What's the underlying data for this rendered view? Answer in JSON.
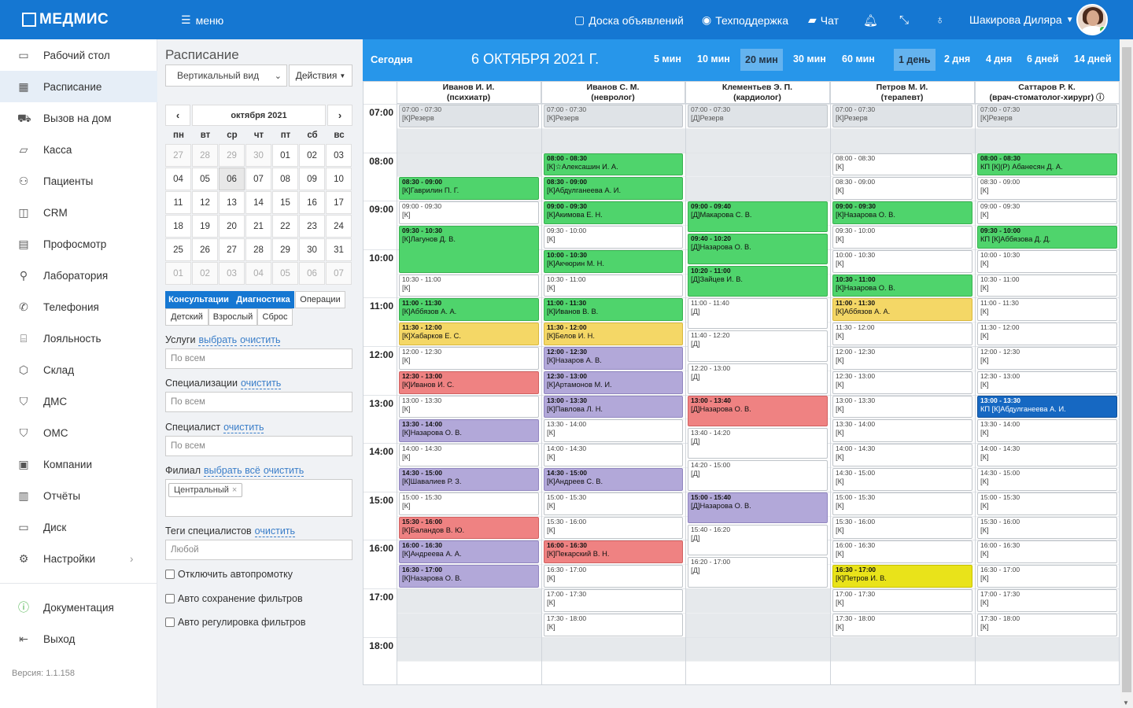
{
  "app": {
    "logo": "МЕДМИС",
    "menu_label": "меню",
    "nav": [
      {
        "label": "Доска объявлений",
        "icon": "clipboard-icon"
      },
      {
        "label": "Техподдержка",
        "icon": "lifebuoy-icon"
      },
      {
        "label": "Чат",
        "icon": "chat-icon"
      }
    ],
    "user_name": "Шакирова Диляра"
  },
  "sidebar": {
    "items": [
      {
        "label": "Рабочий стол",
        "icon": "desktop-icon"
      },
      {
        "label": "Расписание",
        "icon": "calendar-icon"
      },
      {
        "label": "Вызов на дом",
        "icon": "truck-icon"
      },
      {
        "label": "Касса",
        "icon": "money-icon"
      },
      {
        "label": "Пациенты",
        "icon": "users-icon"
      },
      {
        "label": "CRM",
        "icon": "crm-icon"
      },
      {
        "label": "Профосмотр",
        "icon": "book-icon"
      },
      {
        "label": "Лаборатория",
        "icon": "microscope-icon"
      },
      {
        "label": "Телефония",
        "icon": "phone-icon"
      },
      {
        "label": "Лояльность",
        "icon": "gift-icon"
      },
      {
        "label": "Склад",
        "icon": "box-icon"
      },
      {
        "label": "ДМС",
        "icon": "shield-icon"
      },
      {
        "label": "ОМС",
        "icon": "shield-icon"
      },
      {
        "label": "Компании",
        "icon": "briefcase-icon"
      },
      {
        "label": "Отчёты",
        "icon": "bar-chart-icon"
      },
      {
        "label": "Диск",
        "icon": "folder-icon"
      },
      {
        "label": "Настройки",
        "icon": "gear-icon"
      }
    ],
    "bottom": [
      {
        "label": "Документация",
        "icon": "help-icon"
      },
      {
        "label": "Выход",
        "icon": "logout-icon"
      }
    ],
    "version": "Версия: 1.1.158"
  },
  "filters": {
    "title": "Расписание",
    "view_select": "Вертикальный вид",
    "actions_button": "Действия",
    "calendar": {
      "month": "октября 2021",
      "weekdays": [
        "пн",
        "вт",
        "ср",
        "чт",
        "пт",
        "сб",
        "вс"
      ],
      "days": [
        [
          "27",
          "28",
          "29",
          "30",
          "01",
          "02",
          "03"
        ],
        [
          "04",
          "05",
          "06",
          "07",
          "08",
          "09",
          "10"
        ],
        [
          "11",
          "12",
          "13",
          "14",
          "15",
          "16",
          "17"
        ],
        [
          "18",
          "19",
          "20",
          "21",
          "22",
          "23",
          "24"
        ],
        [
          "25",
          "26",
          "27",
          "28",
          "29",
          "30",
          "31"
        ],
        [
          "01",
          "02",
          "03",
          "04",
          "05",
          "06",
          "07"
        ]
      ]
    },
    "tabs": [
      "Консультации",
      "Диагностика",
      "Операции"
    ],
    "subtabs": [
      "Детский",
      "Взрослый",
      "Сброс"
    ],
    "services_label": "Услуги",
    "select_link": "выбрать",
    "clear_link": "очистить",
    "select_all_link": "выбрать всё",
    "all_placeholder": "По всем",
    "spec_label": "Специализации",
    "specialist_label": "Специалист",
    "branch_label": "Филиал",
    "branch_tag": "Центральный",
    "tags_label": "Теги специалистов",
    "tags_placeholder": "Любой",
    "checkboxes": [
      "Отключить автопромотку",
      "Авто сохранение фильтров",
      "Авто регулировка фильтров"
    ]
  },
  "schedule": {
    "today": "Сегодня",
    "date": "6 ОКТЯБРЯ 2021 Г.",
    "scales": [
      "5 мин",
      "10 мин",
      "20 мин",
      "30 мин",
      "60 мин",
      "1 день",
      "2 дня",
      "4 дня",
      "6 дней",
      "14 дней"
    ],
    "hours": [
      "07:00",
      "08:00",
      "09:00",
      "10:00",
      "11:00",
      "12:00",
      "13:00",
      "14:00",
      "15:00",
      "16:00",
      "17:00",
      "18:00"
    ],
    "doctors": [
      {
        "name": "Иванов И. И.",
        "spec": "(психиатр)"
      },
      {
        "name": "Иванов С. М.",
        "spec": "(невролог)"
      },
      {
        "name": "Клементьев Э. П.",
        "spec": "(кардиолог)"
      },
      {
        "name": "Петров М. И.",
        "spec": "(терапевт)"
      },
      {
        "name": "Саттаров Р. К.",
        "spec": "(врач-стоматолог-хирург) ⓘ"
      }
    ],
    "slots": [
      [
        {
          "s": "07:00",
          "e": "07:30",
          "t": "07:00 - 07:30",
          "p": "[К]Резерв",
          "c": "e"
        },
        {
          "s": "08:30",
          "e": "09:00",
          "t": "08:30 - 09:00",
          "p": "[К]Гаврилин П. Г.",
          "c": "g"
        },
        {
          "s": "09:00",
          "e": "09:30",
          "t": "09:00 - 09:30",
          "p": "[К]",
          "c": "w"
        },
        {
          "s": "09:30",
          "e": "10:30",
          "t": "09:30 - 10:30",
          "p": "[К]Лагунов Д. В.",
          "c": "g"
        },
        {
          "s": "10:30",
          "e": "11:00",
          "t": "10:30 - 11:00",
          "p": "[К]",
          "c": "w"
        },
        {
          "s": "11:00",
          "e": "11:30",
          "t": "11:00 - 11:30",
          "p": "[К]Аббязов А. А.",
          "c": "g"
        },
        {
          "s": "11:30",
          "e": "12:00",
          "t": "11:30 - 12:00",
          "p": "[К]Хабарков Е. С.",
          "c": "y"
        },
        {
          "s": "12:00",
          "e": "12:30",
          "t": "12:00 - 12:30",
          "p": "[К]",
          "c": "w"
        },
        {
          "s": "12:30",
          "e": "13:00",
          "t": "12:30 - 13:00",
          "p": "[К]Иванов И. С.",
          "c": "r"
        },
        {
          "s": "13:00",
          "e": "13:30",
          "t": "13:00 - 13:30",
          "p": "[К]",
          "c": "w"
        },
        {
          "s": "13:30",
          "e": "14:00",
          "t": "13:30 - 14:00",
          "p": "[К]Назарова О. В.",
          "c": "v"
        },
        {
          "s": "14:00",
          "e": "14:30",
          "t": "14:00 - 14:30",
          "p": "[К]",
          "c": "w"
        },
        {
          "s": "14:30",
          "e": "15:00",
          "t": "14:30 - 15:00",
          "p": "[К]Шавалиев Р. З.",
          "c": "v"
        },
        {
          "s": "15:00",
          "e": "15:30",
          "t": "15:00 - 15:30",
          "p": "[К]",
          "c": "w"
        },
        {
          "s": "15:30",
          "e": "16:00",
          "t": "15:30 - 16:00",
          "p": "[К]Баландов В. Ю.",
          "c": "r"
        },
        {
          "s": "16:00",
          "e": "16:30",
          "t": "16:00 - 16:30",
          "p": "[К]Андреева А. А.",
          "c": "v"
        },
        {
          "s": "16:30",
          "e": "17:00",
          "t": "16:30 - 17:00",
          "p": "[К]Назарова О. В.",
          "c": "v"
        }
      ],
      [
        {
          "s": "07:00",
          "e": "07:30",
          "t": "07:00 - 07:30",
          "p": "[К]Резерв",
          "c": "e"
        },
        {
          "s": "08:00",
          "e": "08:30",
          "t": "08:00 - 08:30",
          "p": "[К]☆Алексашин И. А.",
          "c": "g"
        },
        {
          "s": "08:30",
          "e": "09:00",
          "t": "08:30 - 09:00",
          "p": "[К]Абдулганеева А. И.",
          "c": "g"
        },
        {
          "s": "09:00",
          "e": "09:30",
          "t": "09:00 - 09:30",
          "p": "[К]Акимова Е. Н.",
          "c": "g"
        },
        {
          "s": "09:30",
          "e": "10:00",
          "t": "09:30 - 10:00",
          "p": "[К]",
          "c": "w"
        },
        {
          "s": "10:00",
          "e": "10:30",
          "t": "10:00 - 10:30",
          "p": "[К]Акчюрин М. Н.",
          "c": "g"
        },
        {
          "s": "10:30",
          "e": "11:00",
          "t": "10:30 - 11:00",
          "p": "[К]",
          "c": "w"
        },
        {
          "s": "11:00",
          "e": "11:30",
          "t": "11:00 - 11:30",
          "p": "[К]Иванов В. В.",
          "c": "g"
        },
        {
          "s": "11:30",
          "e": "12:00",
          "t": "11:30 - 12:00",
          "p": "[К]Белов И. Н.",
          "c": "y"
        },
        {
          "s": "12:00",
          "e": "12:30",
          "t": "12:00 - 12:30",
          "p": "[К]Назаров А. В.",
          "c": "v"
        },
        {
          "s": "12:30",
          "e": "13:00",
          "t": "12:30 - 13:00",
          "p": "[К]Артамонов М. И.",
          "c": "v"
        },
        {
          "s": "13:00",
          "e": "13:30",
          "t": "13:00 - 13:30",
          "p": "[К]Павлова Л. Н.",
          "c": "v"
        },
        {
          "s": "13:30",
          "e": "14:00",
          "t": "13:30 - 14:00",
          "p": "[К]",
          "c": "w"
        },
        {
          "s": "14:00",
          "e": "14:30",
          "t": "14:00 - 14:30",
          "p": "[К]",
          "c": "w"
        },
        {
          "s": "14:30",
          "e": "15:00",
          "t": "14:30 - 15:00",
          "p": "[К]Андреев С. В.",
          "c": "v"
        },
        {
          "s": "15:00",
          "e": "15:30",
          "t": "15:00 - 15:30",
          "p": "[К]",
          "c": "w"
        },
        {
          "s": "15:30",
          "e": "16:00",
          "t": "15:30 - 16:00",
          "p": "[К]",
          "c": "w"
        },
        {
          "s": "16:00",
          "e": "16:30",
          "t": "16:00 - 16:30",
          "p": "[К]Пекарский В. Н.",
          "c": "r"
        },
        {
          "s": "16:30",
          "e": "17:00",
          "t": "16:30 - 17:00",
          "p": "[К]",
          "c": "w"
        },
        {
          "s": "17:00",
          "e": "17:30",
          "t": "17:00 - 17:30",
          "p": "[К]",
          "c": "w"
        },
        {
          "s": "17:30",
          "e": "18:00",
          "t": "17:30 - 18:00",
          "p": "[К]",
          "c": "w"
        }
      ],
      [
        {
          "s": "07:00",
          "e": "07:30",
          "t": "07:00 - 07:30",
          "p": "[Д]Резерв",
          "c": "e"
        },
        {
          "s": "09:00",
          "e": "09:40",
          "t": "09:00 - 09:40",
          "p": "[Д]Макарова С. В.",
          "c": "g"
        },
        {
          "s": "09:40",
          "e": "10:20",
          "t": "09:40 - 10:20",
          "p": "[Д]Назарова О. В.",
          "c": "g"
        },
        {
          "s": "10:20",
          "e": "11:00",
          "t": "10:20 - 11:00",
          "p": "[Д]Зайцев И. В.",
          "c": "g"
        },
        {
          "s": "11:00",
          "e": "11:40",
          "t": "11:00 - 11:40",
          "p": "[Д]",
          "c": "w"
        },
        {
          "s": "11:40",
          "e": "12:20",
          "t": "11:40 - 12:20",
          "p": "[Д]",
          "c": "w"
        },
        {
          "s": "12:20",
          "e": "13:00",
          "t": "12:20 - 13:00",
          "p": "[Д]",
          "c": "w"
        },
        {
          "s": "13:00",
          "e": "13:40",
          "t": "13:00 - 13:40",
          "p": "[Д]Назарова О. В.",
          "c": "r"
        },
        {
          "s": "13:40",
          "e": "14:20",
          "t": "13:40 - 14:20",
          "p": "[Д]",
          "c": "w"
        },
        {
          "s": "14:20",
          "e": "15:00",
          "t": "14:20 - 15:00",
          "p": "[Д]",
          "c": "w"
        },
        {
          "s": "15:00",
          "e": "15:40",
          "t": "15:00 - 15:40",
          "p": "[Д]Назарова О. В.",
          "c": "v"
        },
        {
          "s": "15:40",
          "e": "16:20",
          "t": "15:40 - 16:20",
          "p": "[Д]",
          "c": "w"
        },
        {
          "s": "16:20",
          "e": "17:00",
          "t": "16:20 - 17:00",
          "p": "[Д]",
          "c": "w"
        }
      ],
      [
        {
          "s": "07:00",
          "e": "07:30",
          "t": "07:00 - 07:30",
          "p": "[К]Резерв",
          "c": "e"
        },
        {
          "s": "08:00",
          "e": "08:30",
          "t": "08:00 - 08:30",
          "p": "[К]",
          "c": "w"
        },
        {
          "s": "08:30",
          "e": "09:00",
          "t": "08:30 - 09:00",
          "p": "[К]",
          "c": "w"
        },
        {
          "s": "09:00",
          "e": "09:30",
          "t": "09:00 - 09:30",
          "p": "[К]Назарова О. В.",
          "c": "g"
        },
        {
          "s": "09:30",
          "e": "10:00",
          "t": "09:30 - 10:00",
          "p": "[К]",
          "c": "w"
        },
        {
          "s": "10:00",
          "e": "10:30",
          "t": "10:00 - 10:30",
          "p": "[К]",
          "c": "w"
        },
        {
          "s": "10:30",
          "e": "11:00",
          "t": "10:30 - 11:00",
          "p": "[К]Назарова О. В.",
          "c": "g"
        },
        {
          "s": "11:00",
          "e": "11:30",
          "t": "11:00 - 11:30",
          "p": "[К]Аббязов А. А.",
          "c": "y"
        },
        {
          "s": "11:30",
          "e": "12:00",
          "t": "11:30 - 12:00",
          "p": "[К]",
          "c": "w"
        },
        {
          "s": "12:00",
          "e": "12:30",
          "t": "12:00 - 12:30",
          "p": "[К]",
          "c": "w"
        },
        {
          "s": "12:30",
          "e": "13:00",
          "t": "12:30 - 13:00",
          "p": "[К]",
          "c": "w"
        },
        {
          "s": "13:00",
          "e": "13:30",
          "t": "13:00 - 13:30",
          "p": "[К]",
          "c": "w"
        },
        {
          "s": "13:30",
          "e": "14:00",
          "t": "13:30 - 14:00",
          "p": "[К]",
          "c": "w"
        },
        {
          "s": "14:00",
          "e": "14:30",
          "t": "14:00 - 14:30",
          "p": "[К]",
          "c": "w"
        },
        {
          "s": "14:30",
          "e": "15:00",
          "t": "14:30 - 15:00",
          "p": "[К]",
          "c": "w"
        },
        {
          "s": "15:00",
          "e": "15:30",
          "t": "15:00 - 15:30",
          "p": "[К]",
          "c": "w"
        },
        {
          "s": "15:30",
          "e": "16:00",
          "t": "15:30 - 16:00",
          "p": "[К]",
          "c": "w"
        },
        {
          "s": "16:00",
          "e": "16:30",
          "t": "16:00 - 16:30",
          "p": "[К]",
          "c": "w"
        },
        {
          "s": "16:30",
          "e": "17:00",
          "t": "16:30 - 17:00",
          "p": "[К]Петров И. В.",
          "c": "yy"
        },
        {
          "s": "17:00",
          "e": "17:30",
          "t": "17:00 - 17:30",
          "p": "[К]",
          "c": "w"
        },
        {
          "s": "17:30",
          "e": "18:00",
          "t": "17:30 - 18:00",
          "p": "[К]",
          "c": "w"
        }
      ],
      [
        {
          "s": "07:00",
          "e": "07:30",
          "t": "07:00 - 07:30",
          "p": "[К]Резерв",
          "c": "e"
        },
        {
          "s": "08:00",
          "e": "08:30",
          "t": "08:00 - 08:30",
          "p": "КП [К](Р) Абанесян Д. А.",
          "c": "g"
        },
        {
          "s": "08:30",
          "e": "09:00",
          "t": "08:30 - 09:00",
          "p": "[К]",
          "c": "w"
        },
        {
          "s": "09:00",
          "e": "09:30",
          "t": "09:00 - 09:30",
          "p": "[К]",
          "c": "w"
        },
        {
          "s": "09:30",
          "e": "10:00",
          "t": "09:30 - 10:00",
          "p": "КП [К]Аббязова Д. Д.",
          "c": "g"
        },
        {
          "s": "10:00",
          "e": "10:30",
          "t": "10:00 - 10:30",
          "p": "[К]",
          "c": "w"
        },
        {
          "s": "10:30",
          "e": "11:00",
          "t": "10:30 - 11:00",
          "p": "[К]",
          "c": "w"
        },
        {
          "s": "11:00",
          "e": "11:30",
          "t": "11:00 - 11:30",
          "p": "[К]",
          "c": "w"
        },
        {
          "s": "11:30",
          "e": "12:00",
          "t": "11:30 - 12:00",
          "p": "[К]",
          "c": "w"
        },
        {
          "s": "12:00",
          "e": "12:30",
          "t": "12:00 - 12:30",
          "p": "[К]",
          "c": "w"
        },
        {
          "s": "12:30",
          "e": "13:00",
          "t": "12:30 - 13:00",
          "p": "[К]",
          "c": "w"
        },
        {
          "s": "13:00",
          "e": "13:30",
          "t": "13:00 - 13:30",
          "p": "КП [К]Абдулганеева А. И.",
          "c": "b"
        },
        {
          "s": "13:30",
          "e": "14:00",
          "t": "13:30 - 14:00",
          "p": "[К]",
          "c": "w"
        },
        {
          "s": "14:00",
          "e": "14:30",
          "t": "14:00 - 14:30",
          "p": "[К]",
          "c": "w"
        },
        {
          "s": "14:30",
          "e": "15:00",
          "t": "14:30 - 15:00",
          "p": "[К]",
          "c": "w"
        },
        {
          "s": "15:00",
          "e": "15:30",
          "t": "15:00 - 15:30",
          "p": "[К]",
          "c": "w"
        },
        {
          "s": "15:30",
          "e": "16:00",
          "t": "15:30 - 16:00",
          "p": "[К]",
          "c": "w"
        },
        {
          "s": "16:00",
          "e": "16:30",
          "t": "16:00 - 16:30",
          "p": "[К]",
          "c": "w"
        },
        {
          "s": "16:30",
          "e": "17:00",
          "t": "16:30 - 17:00",
          "p": "[К]",
          "c": "w"
        },
        {
          "s": "17:00",
          "e": "17:30",
          "t": "17:00 - 17:30",
          "p": "[К]",
          "c": "w"
        },
        {
          "s": "17:30",
          "e": "18:00",
          "t": "17:30 - 18:00",
          "p": "[К]",
          "c": "w"
        }
      ]
    ]
  }
}
